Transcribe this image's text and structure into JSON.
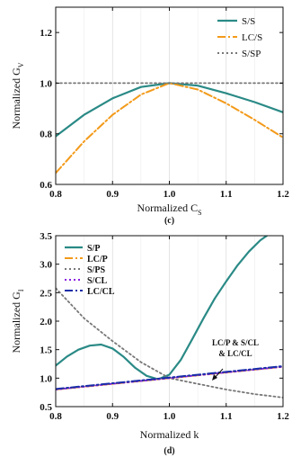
{
  "chart_data": [
    {
      "type": "line",
      "panel_label": "(c)",
      "xlabel": "Normalized C",
      "xlabel_sub": "S",
      "ylabel": "Normalized G",
      "ylabel_sub": "V",
      "xlim": [
        0.8,
        1.2
      ],
      "ylim": [
        0.6,
        1.3
      ],
      "xticks": [
        0.8,
        0.9,
        1.0,
        1.1,
        1.2
      ],
      "yticks": [
        0.6,
        0.8,
        1.0,
        1.2
      ],
      "grid": "vertical",
      "legend_position": "top-right",
      "series": [
        {
          "name": "S/S",
          "color": "#2a8a86",
          "dash": "solid",
          "x": [
            0.8,
            0.85,
            0.9,
            0.95,
            1.0,
            1.05,
            1.1,
            1.15,
            1.2
          ],
          "y": [
            0.79,
            0.875,
            0.94,
            0.985,
            1.0,
            0.99,
            0.96,
            0.925,
            0.885
          ]
        },
        {
          "name": "LC/S",
          "color": "#f39a1a",
          "dash": "dashdot",
          "x": [
            0.8,
            0.85,
            0.9,
            0.95,
            1.0,
            1.05,
            1.1,
            1.15,
            1.2
          ],
          "y": [
            0.645,
            0.77,
            0.875,
            0.955,
            1.0,
            0.975,
            0.92,
            0.855,
            0.785
          ]
        },
        {
          "name": "S/SP",
          "color": "#777777",
          "dash": "dot",
          "x": [
            0.8,
            1.2
          ],
          "y": [
            1.0,
            1.0
          ]
        }
      ]
    },
    {
      "type": "line",
      "panel_label": "(d)",
      "xlabel": "Normalized k",
      "ylabel": "Normalized G",
      "ylabel_sub": "I",
      "xlim": [
        0.8,
        1.2
      ],
      "ylim": [
        0.5,
        3.5
      ],
      "xticks": [
        0.8,
        0.9,
        1.0,
        1.1,
        1.2
      ],
      "yticks": [
        0.5,
        1.0,
        1.5,
        2.0,
        2.5,
        3.0,
        3.5
      ],
      "grid": "vertical",
      "legend_position": "top-left",
      "annotation": [
        "LC/P & S/CL",
        "& LC/CL"
      ],
      "series": [
        {
          "name": "S/P",
          "color": "#2a8a86",
          "dash": "solid",
          "x": [
            0.8,
            0.82,
            0.84,
            0.86,
            0.88,
            0.9,
            0.92,
            0.94,
            0.96,
            0.98,
            1.0,
            1.02,
            1.04,
            1.06,
            1.08,
            1.1,
            1.12,
            1.14,
            1.16,
            1.18,
            1.2
          ],
          "y": [
            1.22,
            1.38,
            1.5,
            1.57,
            1.59,
            1.52,
            1.37,
            1.18,
            1.04,
            0.98,
            1.06,
            1.32,
            1.68,
            2.05,
            2.4,
            2.7,
            2.98,
            3.22,
            3.42,
            3.56,
            3.68
          ]
        },
        {
          "name": "LC/P",
          "color": "#f39a1a",
          "dash": "dashdot",
          "x": [
            0.8,
            1.2
          ],
          "y": [
            0.8,
            1.2
          ]
        },
        {
          "name": "S/PS",
          "color": "#777777",
          "dash": "dot",
          "x": [
            0.8,
            0.85,
            0.9,
            0.95,
            1.0,
            1.05,
            1.1,
            1.15,
            1.2
          ],
          "y": [
            2.58,
            2.05,
            1.65,
            1.28,
            1.0,
            0.9,
            0.8,
            0.72,
            0.66
          ]
        },
        {
          "name": "S/CL",
          "color": "#8a1be0",
          "dash": "dot",
          "x": [
            0.8,
            1.2
          ],
          "y": [
            0.8,
            1.2
          ]
        },
        {
          "name": "LC/CL",
          "color": "#1a2ea8",
          "dash": "dashdot",
          "x": [
            0.8,
            1.2
          ],
          "y": [
            0.81,
            1.21
          ]
        }
      ]
    }
  ]
}
